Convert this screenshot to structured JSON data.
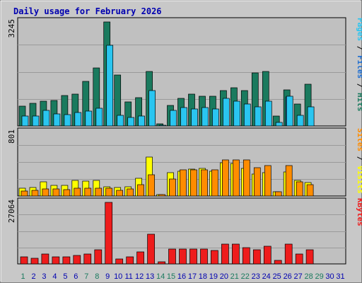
{
  "chart_data": {
    "type": "bar",
    "title": "Daily usage for February 2026",
    "categories": [
      "1",
      "2",
      "3",
      "4",
      "5",
      "6",
      "7",
      "8",
      "9",
      "10",
      "11",
      "12",
      "13",
      "14",
      "15",
      "16",
      "17",
      "18",
      "19",
      "20",
      "21",
      "22",
      "23",
      "24",
      "25",
      "26",
      "27",
      "28",
      "29",
      "30",
      "31"
    ],
    "weekend_days": [
      "1",
      "7",
      "8",
      "14",
      "15",
      "21",
      "22",
      "28",
      "29"
    ],
    "panels": [
      {
        "axis_max_label": "3245",
        "ylim": [
          0,
          3245
        ],
        "series": [
          {
            "name": "Hits",
            "color": "#1a7a5e",
            "values": [
              620,
              700,
              780,
              800,
              950,
              1000,
              1400,
              1800,
              3245,
              1600,
              750,
              880,
              1700,
              60,
              630,
              860,
              1000,
              930,
              930,
              1100,
              1200,
              1100,
              1650,
              1700,
              300,
              1130,
              690,
              1300,
              0,
              0,
              0
            ]
          },
          {
            "name": "Files",
            "color": "#1e6ed1",
            "values": [
              0,
              0,
              0,
              0,
              0,
              0,
              0,
              0,
              0,
              0,
              0,
              0,
              0,
              0,
              0,
              0,
              0,
              0,
              0,
              0,
              0,
              0,
              0,
              0,
              0,
              900,
              0,
              0,
              0,
              0,
              0
            ]
          },
          {
            "name": "Pages",
            "color": "#2ac5f0",
            "values": [
              300,
              310,
              480,
              380,
              360,
              410,
              460,
              560,
              2520,
              330,
              260,
              310,
              1100,
              20,
              490,
              580,
              520,
              580,
              520,
              850,
              780,
              680,
              600,
              780,
              100,
              920,
              340,
              590,
              0,
              0,
              0
            ]
          }
        ]
      },
      {
        "axis_max_label": "801",
        "ylim": [
          0,
          801
        ],
        "series": [
          {
            "name": "Visits",
            "color": "#ffff00",
            "values": [
              100,
              110,
              180,
              130,
              130,
              200,
              190,
              200,
              120,
              110,
              120,
              220,
              490,
              20,
              290,
              310,
              340,
              350,
              310,
              420,
              410,
              350,
              280,
              290,
              50,
              300,
              200,
              170,
              0,
              0,
              0
            ]
          },
          {
            "name": "Sites",
            "color": "#ff8c00",
            "values": [
              65,
              70,
              90,
              90,
              80,
              95,
              100,
              100,
              100,
              75,
              85,
              140,
              270,
              20,
              210,
              330,
              330,
              330,
              330,
              450,
              450,
              450,
              360,
              380,
              50,
              380,
              180,
              140,
              0,
              0,
              0
            ]
          }
        ]
      },
      {
        "axis_max_label": "27064",
        "ylim": [
          0,
          27064
        ],
        "series": [
          {
            "name": "KBytes",
            "color": "#ee1c1c",
            "values": [
              3200,
              2500,
              4300,
              3000,
              3100,
              3800,
              4500,
              6200,
              27064,
              2300,
              3000,
              5300,
              13200,
              800,
              6500,
              6500,
              6500,
              6500,
              6000,
              8600,
              8600,
              7300,
              6300,
              7700,
              1500,
              8700,
              4400,
              6100,
              0,
              0,
              0
            ]
          }
        ]
      }
    ],
    "right_labels": {
      "panel1": [
        {
          "text": "Pages",
          "color": "#2ac5f0"
        },
        {
          "text": " / ",
          "color": "#000000"
        },
        {
          "text": "Files",
          "color": "#1e6ed1"
        },
        {
          "text": " / ",
          "color": "#000000"
        },
        {
          "text": "Hits",
          "color": "#1a7a5e"
        }
      ],
      "panel2": [
        {
          "text": "Sites",
          "color": "#ff8c00"
        },
        {
          "text": " / ",
          "color": "#000000"
        },
        {
          "text": "Visits",
          "color": "#ffff00"
        }
      ],
      "panel3": [
        {
          "text": "KBytes",
          "color": "#ee1c1c"
        }
      ]
    },
    "colors": {
      "title": "#0000b0",
      "weekday_label": "#0000b0",
      "weekend_label": "#1a7a5e",
      "panel_bg": "#c0c0c0",
      "frame_bg": "#c8c8c8"
    }
  }
}
